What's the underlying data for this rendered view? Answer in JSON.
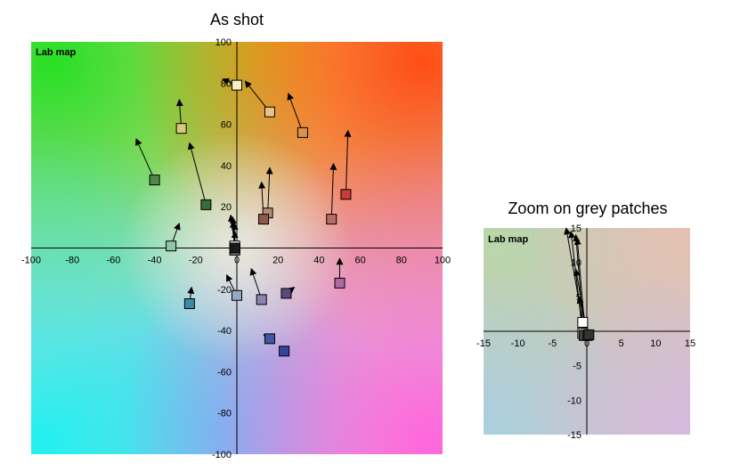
{
  "chart_data": [
    {
      "type": "scatter",
      "title": "As shot",
      "map_label": "Lab map",
      "xlim": [
        -100,
        100
      ],
      "ylim": [
        -100,
        100
      ],
      "x_ticks": [
        -100,
        -80,
        -60,
        -40,
        -20,
        0,
        20,
        40,
        60,
        80,
        100
      ],
      "y_ticks": [
        -100,
        -80,
        -60,
        -40,
        -20,
        0,
        20,
        40,
        60,
        80,
        100
      ],
      "grid": false,
      "background": "Lab a*/b* color map",
      "arrows": [
        {
          "from": [
            0,
            79
          ],
          "to": [
            -7,
            82
          ],
          "color": "#f8efc8"
        },
        {
          "from": [
            16,
            66
          ],
          "to": [
            4,
            81
          ],
          "color": "#e9c283"
        },
        {
          "from": [
            32,
            56
          ],
          "to": [
            25,
            75
          ],
          "color": "#d9924a"
        },
        {
          "from": [
            -27,
            58
          ],
          "to": [
            -28,
            72
          ],
          "color": "#d6cc78"
        },
        {
          "from": [
            -40,
            33
          ],
          "to": [
            -49,
            53
          ],
          "color": "#4f8a48"
        },
        {
          "from": [
            -15,
            21
          ],
          "to": [
            -23,
            51
          ],
          "color": "#3b6c3c"
        },
        {
          "from": [
            53,
            26
          ],
          "to": [
            54,
            57
          ],
          "color": "#c83a3c"
        },
        {
          "from": [
            46,
            14
          ],
          "to": [
            47,
            41
          ],
          "color": "#b86c66"
        },
        {
          "from": [
            15,
            17
          ],
          "to": [
            16,
            39
          ],
          "color": "#b58a72"
        },
        {
          "from": [
            13,
            14
          ],
          "to": [
            12,
            32
          ],
          "color": "#8f5a4c"
        },
        {
          "from": [
            -32,
            1
          ],
          "to": [
            -28,
            12
          ],
          "color": "#8fc8a8"
        },
        {
          "from": [
            -1,
            1
          ],
          "to": [
            -3,
            16
          ],
          "color": "#ffffff"
        },
        {
          "from": [
            -1,
            -1
          ],
          "to": [
            -2,
            15
          ],
          "color": "#cfcfcf"
        },
        {
          "from": [
            -1,
            -1
          ],
          "to": [
            -1,
            12
          ],
          "color": "#8a8a8a"
        },
        {
          "from": [
            -1,
            0
          ],
          "to": [
            -2,
            13
          ],
          "color": "#555555"
        },
        {
          "from": [
            -1,
            0
          ],
          "to": [
            -1,
            8
          ],
          "color": "#1a1a1a"
        },
        {
          "from": [
            -23,
            -27
          ],
          "to": [
            -22,
            -19
          ],
          "color": "#3a8ca6"
        },
        {
          "from": [
            0,
            -23
          ],
          "to": [
            -5,
            -13
          ],
          "color": "#96a8c2"
        },
        {
          "from": [
            12,
            -25
          ],
          "to": [
            7,
            -10
          ],
          "color": "#8a84ae"
        },
        {
          "from": [
            24,
            -22
          ],
          "to": [
            28,
            -19
          ],
          "color": "#5a4a7e"
        },
        {
          "from": [
            50,
            -17
          ],
          "to": [
            50,
            -5
          ],
          "color": "#b069a0"
        },
        {
          "from": [
            16,
            -44
          ],
          "to": [
            13,
            -42
          ],
          "color": "#3e56a8"
        },
        {
          "from": [
            23,
            -50
          ],
          "to": [
            23,
            -50
          ],
          "color": "#3545a0"
        }
      ]
    },
    {
      "type": "scatter",
      "title": "Zoom on grey patches",
      "map_label": "Lab map",
      "xlim": [
        -15,
        15
      ],
      "ylim": [
        -15,
        15
      ],
      "x_ticks": [
        -15,
        -10,
        -5,
        0,
        5,
        10,
        15
      ],
      "y_ticks": [
        -15,
        -10,
        -5,
        0,
        5,
        10,
        15
      ],
      "grid": false,
      "background": "Lab a*/b* color map (zoomed)",
      "arrows": [
        {
          "from": [
            -0.6,
            1.3
          ],
          "to": [
            -3,
            15
          ],
          "color": "#ffffff"
        },
        {
          "from": [
            -0.6,
            -0.3
          ],
          "to": [
            -2.3,
            14.5
          ],
          "color": "#cfcfcf"
        },
        {
          "from": [
            -0.4,
            -0.6
          ],
          "to": [
            -1.6,
            14
          ],
          "color": "#9a9a9a"
        },
        {
          "from": [
            -0.2,
            -0.6
          ],
          "to": [
            -1.4,
            13.5
          ],
          "color": "#6a6a6a"
        },
        {
          "from": [
            0.1,
            -0.6
          ],
          "to": [
            -1.6,
            9
          ],
          "color": "#444444"
        },
        {
          "from": [
            0.3,
            -0.5
          ],
          "to": [
            -1.2,
            5
          ],
          "color": "#333333"
        }
      ]
    }
  ]
}
